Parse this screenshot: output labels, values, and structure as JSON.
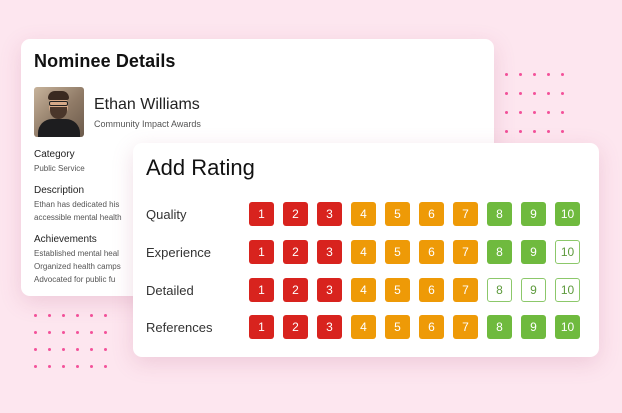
{
  "nominee": {
    "title": "Nominee Details",
    "name": "Ethan Williams",
    "award": "Community Impact Awards",
    "category": {
      "label": "Category",
      "value": "Public Service"
    },
    "description": {
      "label": "Description",
      "lines": [
        "Ethan has dedicated his",
        "accessible mental health"
      ]
    },
    "achievements": {
      "label": "Achievements",
      "lines": [
        "Established mental heal",
        "Organized health camps",
        "Advocated for public fu"
      ]
    }
  },
  "rating": {
    "title": "Add Rating",
    "rows": [
      {
        "label": "Quality",
        "selected": 10
      },
      {
        "label": "Experience",
        "selected": 9
      },
      {
        "label": "Detailed",
        "selected": 7
      },
      {
        "label": "References",
        "selected": 10
      }
    ],
    "scores": [
      "1",
      "2",
      "3",
      "4",
      "5",
      "6",
      "7",
      "8",
      "9",
      "10"
    ],
    "colors": {
      "low": "#d8231e",
      "mid": "#ee9a07",
      "high": "#6fba3e"
    }
  }
}
